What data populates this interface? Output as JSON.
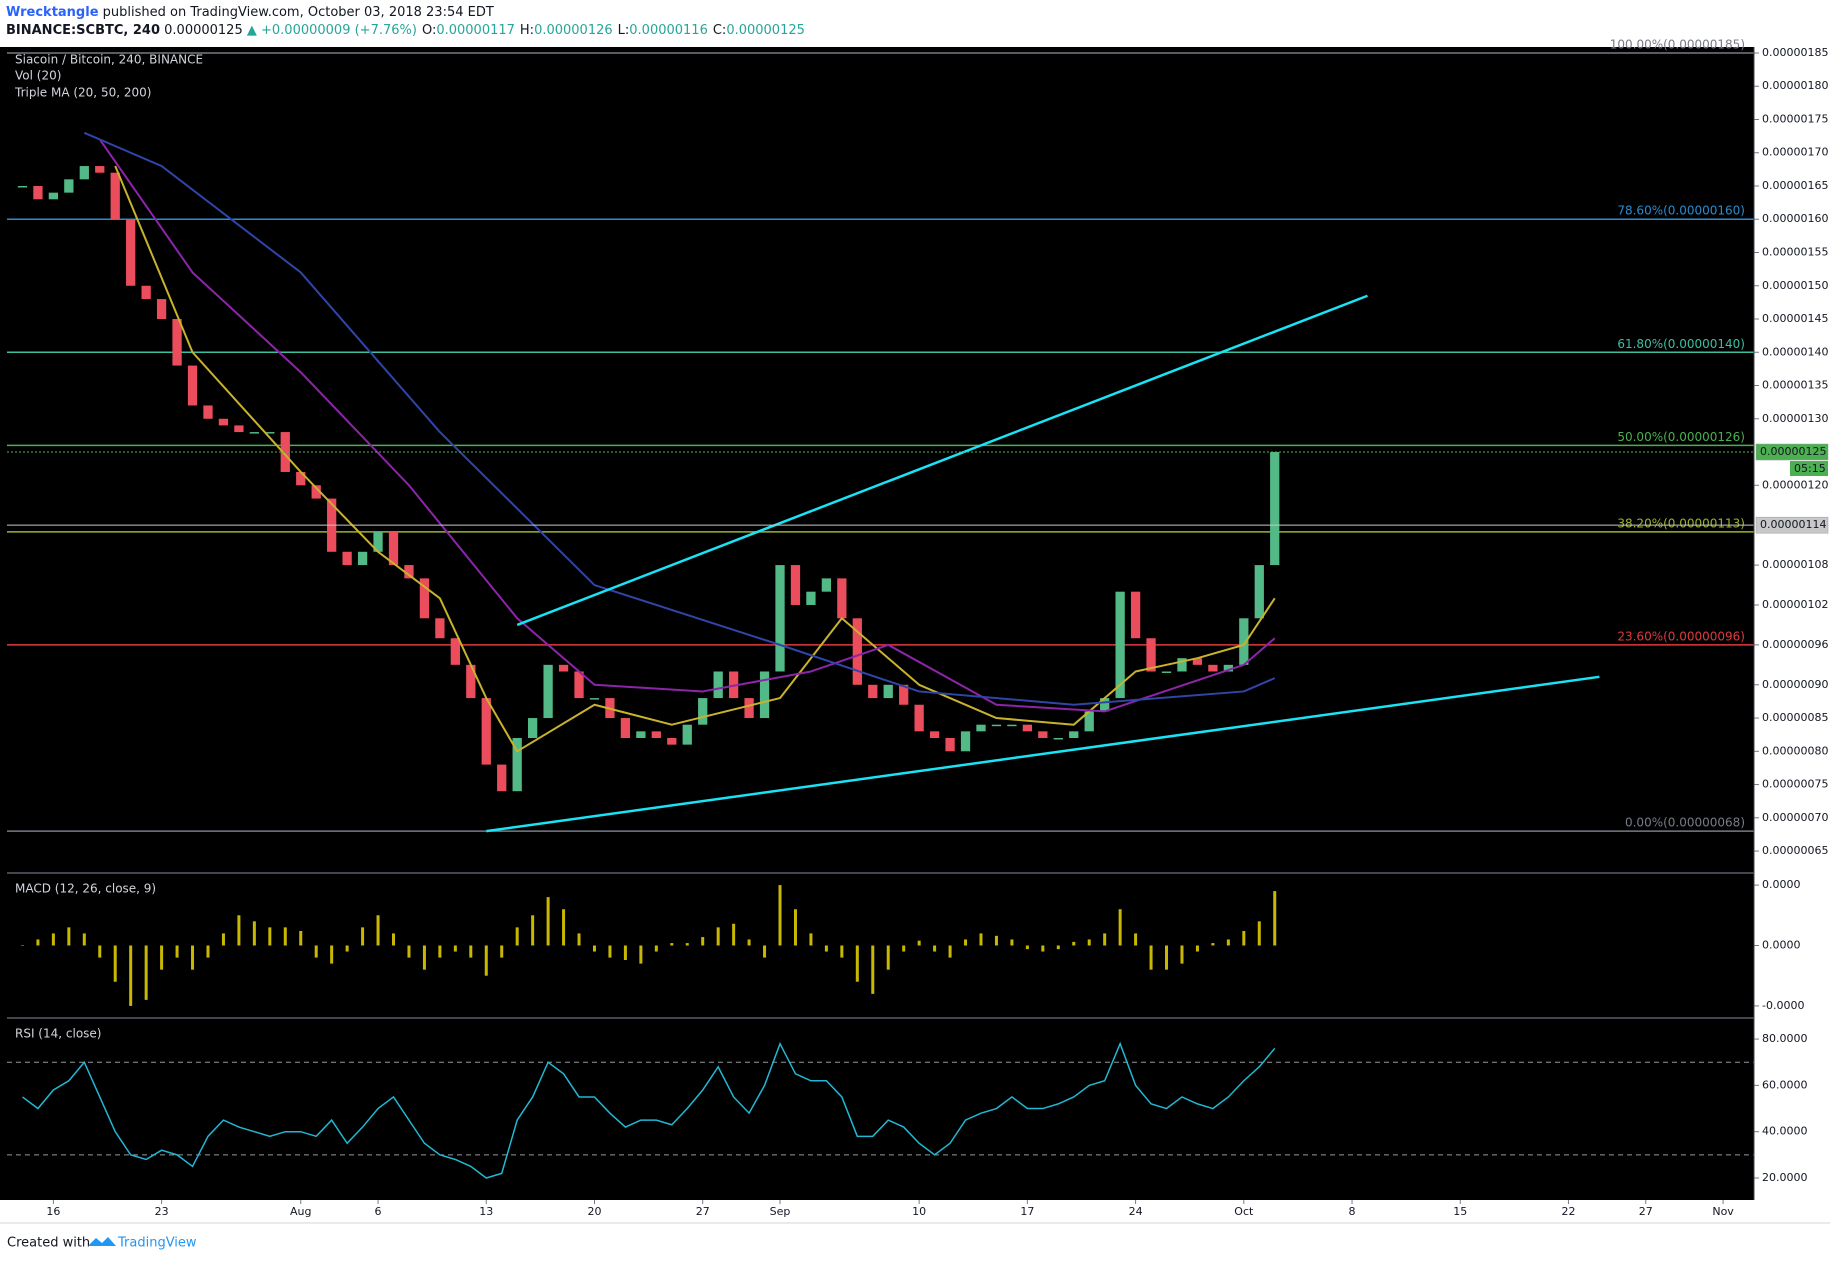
{
  "chart_data": {
    "type": "candlestick",
    "header": {
      "author": "Wrecktangle",
      "published": "published on TradingView.com, October 03, 2018 23:54 EDT",
      "symbol": "BINANCE:SCBTC, 240",
      "last": "0.00000125",
      "change": "▲ +0.00000009 (+7.76%)",
      "ohlc": [
        {
          "label": "O:",
          "value": "0.00000117"
        },
        {
          "label": "H:",
          "value": "0.00000126"
        },
        {
          "label": "L:",
          "value": "0.00000116"
        },
        {
          "label": "C:",
          "value": "0.00000125"
        }
      ]
    },
    "title": "Siacoin / Bitcoin, 240, BINANCE",
    "volume_label": "Vol (20)",
    "ma_label": "Triple MA (20, 50, 200)",
    "x": [
      "2018-07-14",
      "2018-07-15",
      "2018-07-16",
      "2018-07-17",
      "2018-07-18",
      "2018-07-19",
      "2018-07-20",
      "2018-07-21",
      "2018-07-22",
      "2018-07-23",
      "2018-07-24",
      "2018-07-25",
      "2018-07-26",
      "2018-07-27",
      "2018-07-28",
      "2018-07-29",
      "2018-07-30",
      "2018-07-31",
      "2018-08-01",
      "2018-08-02",
      "2018-08-03",
      "2018-08-04",
      "2018-08-05",
      "2018-08-06",
      "2018-08-07",
      "2018-08-08",
      "2018-08-09",
      "2018-08-10",
      "2018-08-11",
      "2018-08-12",
      "2018-08-13",
      "2018-08-14",
      "2018-08-15",
      "2018-08-16",
      "2018-08-17",
      "2018-08-18",
      "2018-08-19",
      "2018-08-20",
      "2018-08-21",
      "2018-08-22",
      "2018-08-23",
      "2018-08-24",
      "2018-08-25",
      "2018-08-26",
      "2018-08-27",
      "2018-08-28",
      "2018-08-29",
      "2018-08-30",
      "2018-08-31",
      "2018-09-01",
      "2018-09-02",
      "2018-09-03",
      "2018-09-04",
      "2018-09-05",
      "2018-09-06",
      "2018-09-07",
      "2018-09-08",
      "2018-09-09",
      "2018-09-10",
      "2018-09-11",
      "2018-09-12",
      "2018-09-13",
      "2018-09-14",
      "2018-09-15",
      "2018-09-16",
      "2018-09-17",
      "2018-09-18",
      "2018-09-19",
      "2018-09-20",
      "2018-09-21",
      "2018-09-22",
      "2018-09-23",
      "2018-09-24",
      "2018-09-25",
      "2018-09-26",
      "2018-09-27",
      "2018-09-28",
      "2018-09-29",
      "2018-09-30",
      "2018-10-01",
      "2018-10-02",
      "2018-10-03"
    ],
    "close": [
      1.65e-06,
      1.63e-06,
      1.64e-06,
      1.66e-06,
      1.68e-06,
      1.67e-06,
      1.6e-06,
      1.5e-06,
      1.48e-06,
      1.45e-06,
      1.38e-06,
      1.32e-06,
      1.3e-06,
      1.29e-06,
      1.28e-06,
      1.28e-06,
      1.28e-06,
      1.22e-06,
      1.2e-06,
      1.18e-06,
      1.1e-06,
      1.08e-06,
      1.1e-06,
      1.13e-06,
      1.08e-06,
      1.06e-06,
      1e-06,
      9.7e-07,
      9.3e-07,
      8.8e-07,
      7.8e-07,
      7.4e-07,
      8.2e-07,
      8.5e-07,
      9.3e-07,
      9.2e-07,
      8.8e-07,
      8.8e-07,
      8.5e-07,
      8.2e-07,
      8.3e-07,
      8.2e-07,
      8.1e-07,
      8.4e-07,
      8.8e-07,
      9.2e-07,
      8.8e-07,
      8.5e-07,
      9.2e-07,
      1.08e-06,
      1.02e-06,
      1.04e-06,
      1.06e-06,
      1e-06,
      9e-07,
      8.8e-07,
      9e-07,
      8.7e-07,
      8.3e-07,
      8.2e-07,
      8e-07,
      8.3e-07,
      8.4e-07,
      8.4e-07,
      8.4e-07,
      8.3e-07,
      8.2e-07,
      8.2e-07,
      8.3e-07,
      8.6e-07,
      8.8e-07,
      1.04e-06,
      9.7e-07,
      9.2e-07,
      9.2e-07,
      9.4e-07,
      9.3e-07,
      9.2e-07,
      9.3e-07,
      1e-06,
      1.08e-06,
      1.25e-06
    ],
    "up_color": "#53b987",
    "down_color": "#eb4d5c",
    "moving_averages": [
      {
        "color": "#c9b32c",
        "x": [
          "2018-07-20",
          "2018-07-25",
          "2018-08-01",
          "2018-08-06",
          "2018-08-10",
          "2018-08-13",
          "2018-08-15",
          "2018-08-20",
          "2018-08-25",
          "2018-09-01",
          "2018-09-05",
          "2018-09-10",
          "2018-09-15",
          "2018-09-20",
          "2018-09-24",
          "2018-09-28",
          "2018-10-01",
          "2018-10-03"
        ],
        "values": [
          1.68e-06,
          1.4e-06,
          1.22e-06,
          1.1e-06,
          1.03e-06,
          8.8e-07,
          8e-07,
          8.7e-07,
          8.4e-07,
          8.8e-07,
          1e-06,
          9e-07,
          8.5e-07,
          8.4e-07,
          9.2e-07,
          9.4e-07,
          9.6e-07,
          1.03e-06
        ]
      },
      {
        "color": "#8e24aa",
        "x": [
          "2018-07-19",
          "2018-07-25",
          "2018-08-01",
          "2018-08-08",
          "2018-08-15",
          "2018-08-20",
          "2018-08-27",
          "2018-09-03",
          "2018-09-08",
          "2018-09-15",
          "2018-09-22",
          "2018-10-01",
          "2018-10-03"
        ],
        "values": [
          1.72e-06,
          1.52e-06,
          1.37e-06,
          1.2e-06,
          1e-06,
          9e-07,
          8.9e-07,
          9.2e-07,
          9.6e-07,
          8.7e-07,
          8.6e-07,
          9.3e-07,
          9.7e-07
        ]
      },
      {
        "color": "#2f45a8",
        "x": [
          "2018-07-18",
          "2018-07-23",
          "2018-08-01",
          "2018-08-10",
          "2018-08-20",
          "2018-09-01",
          "2018-09-10",
          "2018-09-20",
          "2018-10-01",
          "2018-10-03"
        ],
        "values": [
          1.73e-06,
          1.68e-06,
          1.52e-06,
          1.28e-06,
          1.05e-06,
          9.6e-07,
          8.9e-07,
          8.7e-07,
          8.9e-07,
          9.1e-07
        ]
      }
    ],
    "fib_levels": [
      {
        "value": 1.85e-06,
        "label": "100.00%(0.00000185)",
        "color": "#787b86"
      },
      {
        "value": 1.6e-06,
        "label": "78.60%(0.00000160)",
        "color": "#2a8bd0"
      },
      {
        "value": 1.4e-06,
        "label": "61.80%(0.00000140)",
        "color": "#3bbfa0"
      },
      {
        "value": 1.26e-06,
        "label": "50.00%(0.00000126)",
        "color": "#4caf50"
      },
      {
        "value": 1.13e-06,
        "label": "38.20%(0.00000113)",
        "color": "#9ab42c"
      },
      {
        "value": 9.6e-07,
        "label": "23.60%(0.00000096)",
        "color": "#e0393e"
      },
      {
        "value": 6.8e-07,
        "label": "0.00%(0.00000068)",
        "color": "#787b86"
      }
    ],
    "trend_lines": [
      {
        "color": "#19e3f5",
        "x": [
          "2018-08-15",
          "2018-10-09"
        ],
        "values": [
          9.9e-07,
          1.485e-06
        ]
      },
      {
        "color": "#19e3f5",
        "x": [
          "2018-08-13",
          "2018-10-24"
        ],
        "values": [
          6.8e-07,
          9.12e-07
        ]
      }
    ],
    "price_tags": [
      {
        "value": 1.25e-06,
        "label": "0.00000125",
        "countdown": "05:15",
        "color": "#4caf50"
      },
      {
        "value": 1.14e-06,
        "label": "0.00000114",
        "color": "#c8c8c8"
      }
    ],
    "xlim": [
      "2018-07-13",
      "2018-11-03"
    ],
    "xticks": [
      {
        "value": "2018-07-16",
        "label": "16"
      },
      {
        "value": "2018-07-23",
        "label": "23"
      },
      {
        "value": "2018-08-01",
        "label": "Aug"
      },
      {
        "value": "2018-08-06",
        "label": "6"
      },
      {
        "value": "2018-08-13",
        "label": "13"
      },
      {
        "value": "2018-08-20",
        "label": "20"
      },
      {
        "value": "2018-08-27",
        "label": "27"
      },
      {
        "value": "2018-09-01",
        "label": "Sep"
      },
      {
        "value": "2018-09-10",
        "label": "10"
      },
      {
        "value": "2018-09-17",
        "label": "17"
      },
      {
        "value": "2018-09-24",
        "label": "24"
      },
      {
        "value": "2018-10-01",
        "label": "Oct"
      },
      {
        "value": "2018-10-08",
        "label": "8"
      },
      {
        "value": "2018-10-15",
        "label": "15"
      },
      {
        "value": "2018-10-22",
        "label": "22"
      },
      {
        "value": "2018-10-27",
        "label": "27"
      },
      {
        "value": "2018-11-01",
        "label": "Nov"
      }
    ],
    "ylim": [
      6.17e-07,
      1.859e-06
    ],
    "yticks": [
      {
        "value": 1.85e-06,
        "label": "0.00000185"
      },
      {
        "value": 1.8e-06,
        "label": "0.00000180"
      },
      {
        "value": 1.75e-06,
        "label": "0.00000175"
      },
      {
        "value": 1.7e-06,
        "label": "0.00000170"
      },
      {
        "value": 1.65e-06,
        "label": "0.00000165"
      },
      {
        "value": 1.6e-06,
        "label": "0.00000160"
      },
      {
        "value": 1.55e-06,
        "label": "0.00000155"
      },
      {
        "value": 1.5e-06,
        "label": "0.00000150"
      },
      {
        "value": 1.45e-06,
        "label": "0.00000145"
      },
      {
        "value": 1.4e-06,
        "label": "0.00000140"
      },
      {
        "value": 1.35e-06,
        "label": "0.00000135"
      },
      {
        "value": 1.3e-06,
        "label": "0.00000130"
      },
      {
        "value": 1.2e-06,
        "label": "0.00000120"
      },
      {
        "value": 1.08e-06,
        "label": "0.00000108"
      },
      {
        "value": 1.02e-06,
        "label": "0.00000102"
      },
      {
        "value": 9.6e-07,
        "label": "0.00000096"
      },
      {
        "value": 9e-07,
        "label": "0.00000090"
      },
      {
        "value": 8.5e-07,
        "label": "0.00000085"
      },
      {
        "value": 8e-07,
        "label": "0.00000080"
      },
      {
        "value": 7.5e-07,
        "label": "0.00000075"
      },
      {
        "value": 7e-07,
        "label": "0.00000070"
      },
      {
        "value": 6.5e-07,
        "label": "0.00000065"
      }
    ],
    "panes": [
      {
        "type": "bar",
        "title": "MACD (12, 26, close, 9)",
        "color": "#c9b800",
        "ylim": [
          -6e-08,
          6e-08
        ],
        "yticks": [
          {
            "value": 5e-08,
            "label": "0.0000"
          },
          {
            "value": 0,
            "label": "0.0000"
          },
          {
            "value": -5e-08,
            "label": "-0.0000"
          }
        ],
        "values": [
          0,
          5e-09,
          1e-08,
          1.5e-08,
          1e-08,
          -1e-08,
          -3e-08,
          -5e-08,
          -4.5e-08,
          -2e-08,
          -1e-08,
          -2e-08,
          -1e-08,
          1e-08,
          2.5e-08,
          2e-08,
          1.5e-08,
          1.5e-08,
          1.2e-08,
          -1e-08,
          -1.5e-08,
          -5e-09,
          1.5e-08,
          2.5e-08,
          1e-08,
          -1e-08,
          -2e-08,
          -1e-08,
          -5e-09,
          -1e-08,
          -2.5e-08,
          -1e-08,
          1.5e-08,
          2.5e-08,
          4e-08,
          3e-08,
          1e-08,
          -5e-09,
          -1e-08,
          -1.2e-08,
          -1.5e-08,
          -5e-09,
          2e-09,
          2e-09,
          7e-09,
          1.5e-08,
          1.8e-08,
          5e-09,
          -1e-08,
          5e-08,
          3e-08,
          1e-08,
          -5e-09,
          -1e-08,
          -3e-08,
          -4e-08,
          -2e-08,
          -5e-09,
          4e-09,
          -5e-09,
          -1e-08,
          5e-09,
          1e-08,
          8e-09,
          5e-09,
          -3e-09,
          -5e-09,
          -3e-09,
          3e-09,
          5e-09,
          1e-08,
          3e-08,
          1e-08,
          -2e-08,
          -2e-08,
          -1.5e-08,
          -5e-09,
          2e-09,
          5e-09,
          1.2e-08,
          2e-08,
          4.5e-08
        ]
      },
      {
        "type": "line",
        "title": "RSI (14, close)",
        "color": "#21b8d4",
        "band_color": "#9598a1",
        "bands": [
          70,
          30
        ],
        "ylim": [
          10.5,
          89.1
        ],
        "yticks": [
          {
            "value": 20,
            "label": "20.0000"
          },
          {
            "value": 40,
            "label": "40.0000"
          },
          {
            "value": 60,
            "label": "60.0000"
          },
          {
            "value": 80,
            "label": "80.0000"
          }
        ],
        "values": [
          55,
          50,
          58,
          62,
          70,
          55,
          40,
          30,
          28,
          32,
          30,
          25,
          38,
          45,
          42,
          40,
          38,
          40,
          40,
          38,
          45,
          35,
          42,
          50,
          55,
          45,
          35,
          30,
          28,
          25,
          20,
          22,
          45,
          55,
          70,
          65,
          55,
          55,
          48,
          42,
          45,
          45,
          43,
          50,
          58,
          68,
          55,
          48,
          60,
          78,
          65,
          62,
          62,
          55,
          38,
          38,
          45,
          42,
          35,
          30,
          35,
          45,
          48,
          50,
          55,
          50,
          50,
          52,
          55,
          60,
          62,
          78,
          60,
          52,
          50,
          55,
          52,
          50,
          55,
          62,
          68,
          76
        ]
      }
    ],
    "footer": {
      "created": "Created with",
      "brand": "TradingView"
    }
  }
}
